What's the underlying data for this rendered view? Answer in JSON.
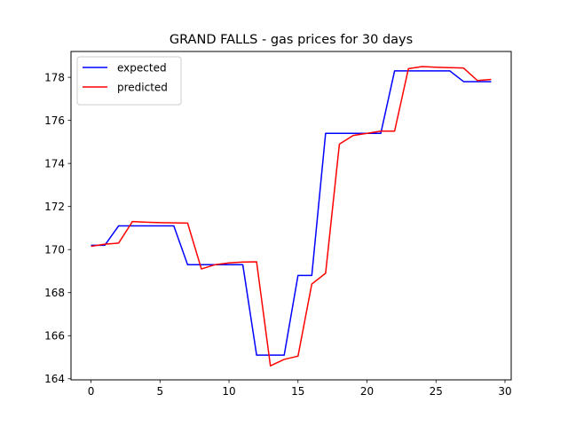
{
  "chart_data": {
    "type": "line",
    "title": "GRAND FALLS - gas prices for 30 days",
    "xlabel": "",
    "ylabel": "",
    "xlim": [
      -1.45,
      30.45
    ],
    "ylim": [
      163.95,
      179.2
    ],
    "xticks": [
      0,
      5,
      10,
      15,
      20,
      25,
      30
    ],
    "yticks": [
      164,
      166,
      168,
      170,
      172,
      174,
      176,
      178
    ],
    "grid": false,
    "legend": "top-left",
    "x": [
      0,
      1,
      2,
      3,
      4,
      5,
      6,
      7,
      8,
      9,
      10,
      11,
      12,
      13,
      14,
      15,
      16,
      17,
      18,
      19,
      20,
      21,
      22,
      23,
      24,
      25,
      26,
      27,
      28,
      29
    ],
    "series": [
      {
        "name": "expected",
        "color": "#0000ff",
        "values": [
          170.2,
          170.2,
          171.1,
          171.1,
          171.1,
          171.1,
          171.1,
          169.3,
          169.3,
          169.3,
          169.3,
          169.3,
          165.1,
          165.1,
          165.1,
          168.8,
          168.8,
          175.4,
          175.4,
          175.4,
          175.4,
          175.4,
          178.3,
          178.3,
          178.3,
          178.3,
          178.3,
          177.8,
          177.8,
          177.8
        ]
      },
      {
        "name": "predicted",
        "color": "#ff0000",
        "values": [
          170.15,
          170.25,
          170.3,
          171.3,
          171.27,
          171.25,
          171.24,
          171.23,
          169.1,
          169.3,
          169.38,
          169.42,
          169.43,
          164.6,
          164.9,
          165.05,
          168.4,
          168.9,
          174.9,
          175.3,
          175.4,
          175.5,
          175.5,
          178.4,
          178.5,
          178.47,
          178.45,
          178.43,
          177.85,
          177.9
        ]
      }
    ]
  }
}
